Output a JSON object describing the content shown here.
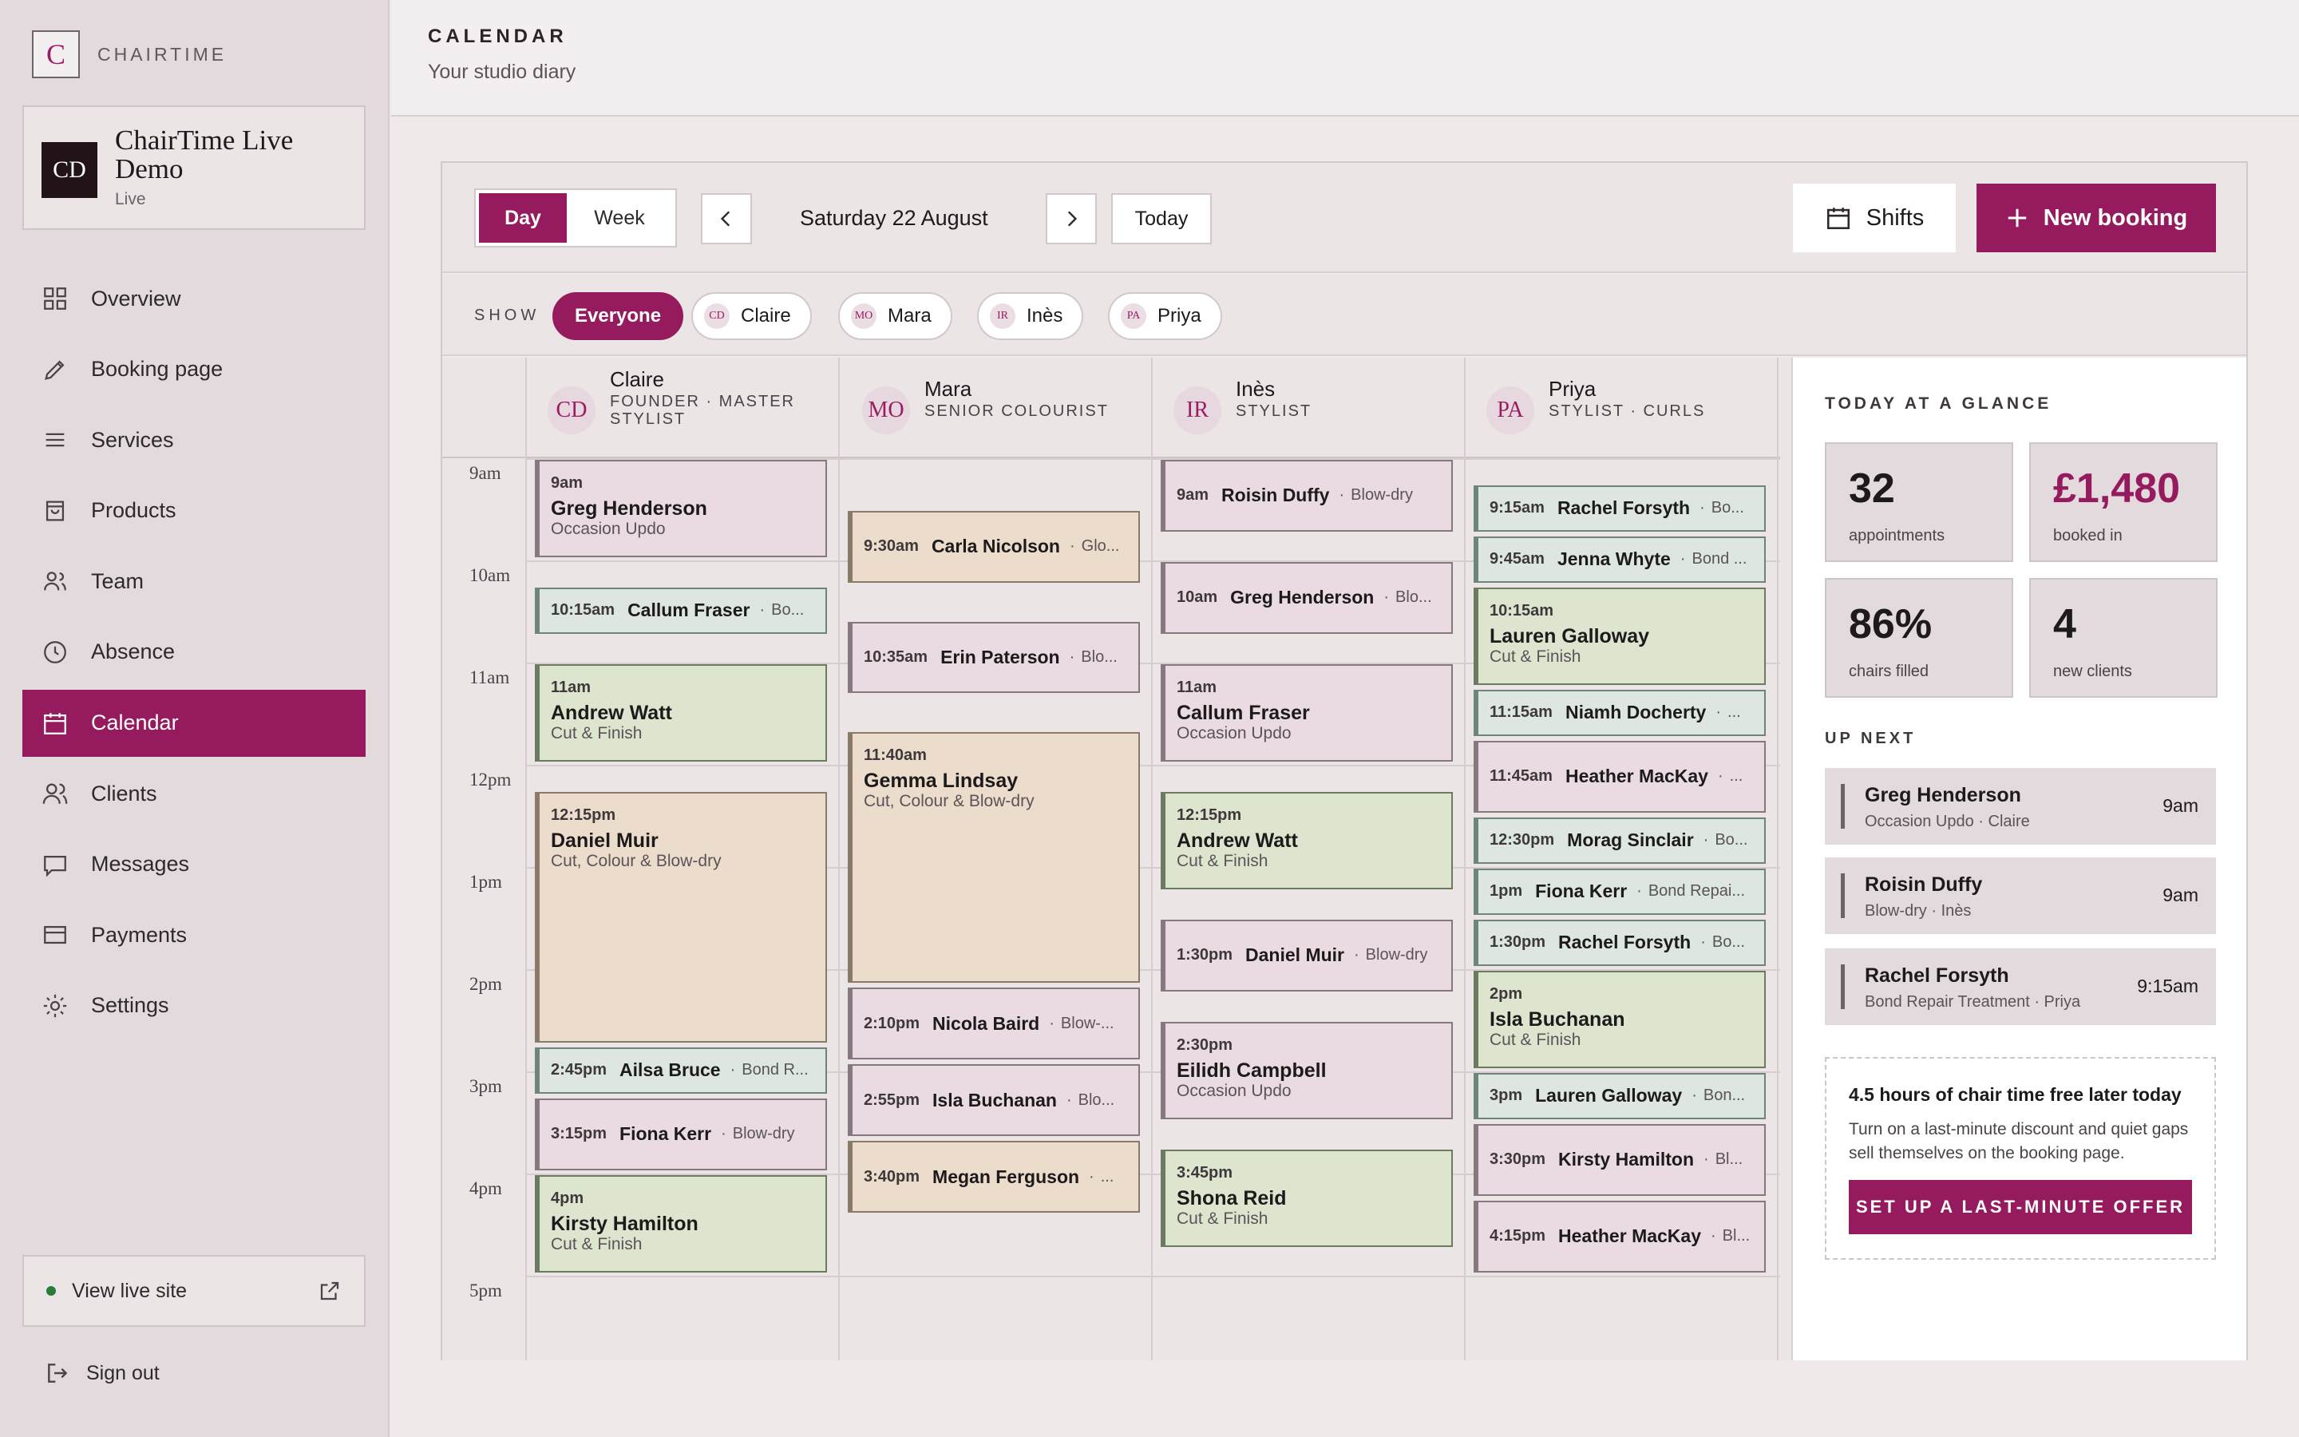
{
  "brand": {
    "logo_letter": "C",
    "name": "CHAIRTIME"
  },
  "workspace": {
    "initials": "CD",
    "name": "ChairTime Live Demo",
    "status": "Live"
  },
  "nav": [
    {
      "label": "Overview",
      "icon": "grid-icon"
    },
    {
      "label": "Booking page",
      "icon": "pencil-icon"
    },
    {
      "label": "Services",
      "icon": "list-icon"
    },
    {
      "label": "Products",
      "icon": "bag-icon"
    },
    {
      "label": "Team",
      "icon": "users-icon"
    },
    {
      "label": "Absence",
      "icon": "clock-icon"
    },
    {
      "label": "Calendar",
      "icon": "calendar-icon",
      "active": true
    },
    {
      "label": "Clients",
      "icon": "people-icon"
    },
    {
      "label": "Messages",
      "icon": "message-icon"
    },
    {
      "label": "Payments",
      "icon": "card-icon"
    },
    {
      "label": "Settings",
      "icon": "gear-icon"
    }
  ],
  "view_live": "View live site",
  "sign_out": "Sign out",
  "header": {
    "title": "CALENDAR",
    "subtitle": "Your studio diary"
  },
  "toolbar": {
    "day": "Day",
    "week": "Week",
    "date": "Saturday 22 August",
    "today": "Today",
    "shifts": "Shifts",
    "new_booking": "New booking"
  },
  "show": {
    "label": "SHOW",
    "everyone": "Everyone",
    "chips": [
      {
        "initials": "CD",
        "name": "Claire"
      },
      {
        "initials": "MO",
        "name": "Mara"
      },
      {
        "initials": "IR",
        "name": "Inès"
      },
      {
        "initials": "PA",
        "name": "Priya"
      }
    ]
  },
  "hours": [
    "9am",
    "10am",
    "11am",
    "12pm",
    "1pm",
    "2pm",
    "3pm",
    "4pm",
    "5pm"
  ],
  "columns": [
    {
      "initials": "CD",
      "name": "Claire",
      "role": "FOUNDER · MASTER STYLIST",
      "events": [
        {
          "time": "9am",
          "start": 9.0,
          "end": 9.95,
          "client": "Greg Henderson",
          "service": "Occasion Updo",
          "color": "pink"
        },
        {
          "time": "10:15am",
          "start": 10.25,
          "end": 10.7,
          "client": "Callum Fraser",
          "service": "Bo...",
          "color": "mint"
        },
        {
          "time": "11am",
          "start": 11.0,
          "end": 11.95,
          "client": "Andrew Watt",
          "service": "Cut & Finish",
          "color": "green"
        },
        {
          "time": "12:15pm",
          "start": 12.25,
          "end": 14.7,
          "client": "Daniel Muir",
          "service": "Cut, Colour & Blow-dry",
          "color": "peach"
        },
        {
          "time": "2:45pm",
          "start": 14.75,
          "end": 15.2,
          "client": "Ailsa Bruce",
          "service": "Bond R...",
          "color": "mint"
        },
        {
          "time": "3:15pm",
          "start": 15.25,
          "end": 15.95,
          "client": "Fiona Kerr",
          "service": "Blow-dry",
          "color": "pink"
        },
        {
          "time": "4pm",
          "start": 16.0,
          "end": 16.95,
          "client": "Kirsty Hamilton",
          "service": "Cut & Finish",
          "color": "green"
        }
      ]
    },
    {
      "initials": "MO",
      "name": "Mara",
      "role": "SENIOR COLOURIST",
      "events": [
        {
          "time": "9:30am",
          "start": 9.5,
          "end": 10.2,
          "client": "Carla Nicolson",
          "service": "Glo...",
          "color": "peach"
        },
        {
          "time": "10:35am",
          "start": 10.583,
          "end": 11.283,
          "client": "Erin Paterson",
          "service": "Blo...",
          "color": "pink"
        },
        {
          "time": "11:40am",
          "start": 11.667,
          "end": 14.117,
          "client": "Gemma Lindsay",
          "service": "Cut, Colour & Blow-dry",
          "color": "peach"
        },
        {
          "time": "2:10pm",
          "start": 14.167,
          "end": 14.867,
          "client": "Nicola Baird",
          "service": "Blow-...",
          "color": "pink"
        },
        {
          "time": "2:55pm",
          "start": 14.917,
          "end": 15.617,
          "client": "Isla Buchanan",
          "service": "Blo...",
          "color": "pink"
        },
        {
          "time": "3:40pm",
          "start": 15.667,
          "end": 16.367,
          "client": "Megan Ferguson",
          "service": "...",
          "color": "peach"
        }
      ]
    },
    {
      "initials": "IR",
      "name": "Inès",
      "role": "STYLIST",
      "events": [
        {
          "time": "9am",
          "start": 9.0,
          "end": 9.7,
          "client": "Roisin Duffy",
          "service": "Blow-dry",
          "color": "pink"
        },
        {
          "time": "10am",
          "start": 10.0,
          "end": 10.7,
          "client": "Greg Henderson",
          "service": "Blo...",
          "color": "pink"
        },
        {
          "time": "11am",
          "start": 11.0,
          "end": 11.95,
          "client": "Callum Fraser",
          "service": "Occasion Updo",
          "color": "pink"
        },
        {
          "time": "12:15pm",
          "start": 12.25,
          "end": 13.2,
          "client": "Andrew Watt",
          "service": "Cut & Finish",
          "color": "green"
        },
        {
          "time": "1:30pm",
          "start": 13.5,
          "end": 14.2,
          "client": "Daniel Muir",
          "service": "Blow-dry",
          "color": "pink"
        },
        {
          "time": "2:30pm",
          "start": 14.5,
          "end": 15.45,
          "client": "Eilidh Campbell",
          "service": "Occasion Updo",
          "color": "pink"
        },
        {
          "time": "3:45pm",
          "start": 15.75,
          "end": 16.7,
          "client": "Shona Reid",
          "service": "Cut & Finish",
          "color": "green"
        }
      ]
    },
    {
      "initials": "PA",
      "name": "Priya",
      "role": "STYLIST · CURLS",
      "events": [
        {
          "time": "9:15am",
          "start": 9.25,
          "end": 9.7,
          "client": "Rachel Forsyth",
          "service": "Bo...",
          "color": "mint"
        },
        {
          "time": "9:45am",
          "start": 9.75,
          "end": 10.2,
          "client": "Jenna Whyte",
          "service": "Bond ...",
          "color": "mint"
        },
        {
          "time": "10:15am",
          "start": 10.25,
          "end": 11.2,
          "client": "Lauren Galloway",
          "service": "Cut & Finish",
          "color": "green"
        },
        {
          "time": "11:15am",
          "start": 11.25,
          "end": 11.7,
          "client": "Niamh Docherty",
          "service": "...",
          "color": "mint"
        },
        {
          "time": "11:45am",
          "start": 11.75,
          "end": 12.45,
          "client": "Heather MacKay",
          "service": "...",
          "color": "pink"
        },
        {
          "time": "12:30pm",
          "start": 12.5,
          "end": 12.95,
          "client": "Morag Sinclair",
          "service": "Bo...",
          "color": "mint"
        },
        {
          "time": "1pm",
          "start": 13.0,
          "end": 13.45,
          "client": "Fiona Kerr",
          "service": "Bond Repai...",
          "color": "mint"
        },
        {
          "time": "1:30pm",
          "start": 13.5,
          "end": 13.95,
          "client": "Rachel Forsyth",
          "service": "Bo...",
          "color": "mint"
        },
        {
          "time": "2pm",
          "start": 14.0,
          "end": 14.95,
          "client": "Isla Buchanan",
          "service": "Cut & Finish",
          "color": "green"
        },
        {
          "time": "3pm",
          "start": 15.0,
          "end": 15.45,
          "client": "Lauren Galloway",
          "service": "Bon...",
          "color": "mint"
        },
        {
          "time": "3:30pm",
          "start": 15.5,
          "end": 16.2,
          "client": "Kirsty Hamilton",
          "service": "Bl...",
          "color": "pink"
        },
        {
          "time": "4:15pm",
          "start": 16.25,
          "end": 16.95,
          "client": "Heather MacKay",
          "service": "Bl...",
          "color": "pink"
        }
      ]
    }
  ],
  "glance": {
    "title": "TODAY AT A GLANCE",
    "stats": [
      {
        "value": "32",
        "label": "appointments"
      },
      {
        "value": "£1,480",
        "label": "booked in",
        "accent": true
      },
      {
        "value": "86%",
        "label": "chairs filled"
      },
      {
        "value": "4",
        "label": "new clients"
      }
    ],
    "up_next_title": "UP NEXT",
    "up_next": [
      {
        "name": "Greg Henderson",
        "detail": "Occasion Updo · Claire",
        "time": "9am"
      },
      {
        "name": "Roisin Duffy",
        "detail": "Blow-dry · Inès",
        "time": "9am"
      },
      {
        "name": "Rachel Forsyth",
        "detail": "Bond Repair Treatment · Priya",
        "time": "9:15am"
      }
    ],
    "offer": {
      "heading": "4.5 hours of chair time free later today",
      "body": "Turn on a last-minute discount and quiet gaps sell themselves on the booking page.",
      "button": "SET UP A LAST-MINUTE OFFER"
    }
  },
  "colors": {
    "accent": "#951a5e",
    "pink": "#e9dbe1",
    "green": "#dde5cf",
    "peach": "#ecdccc",
    "mint": "#dde6df"
  }
}
